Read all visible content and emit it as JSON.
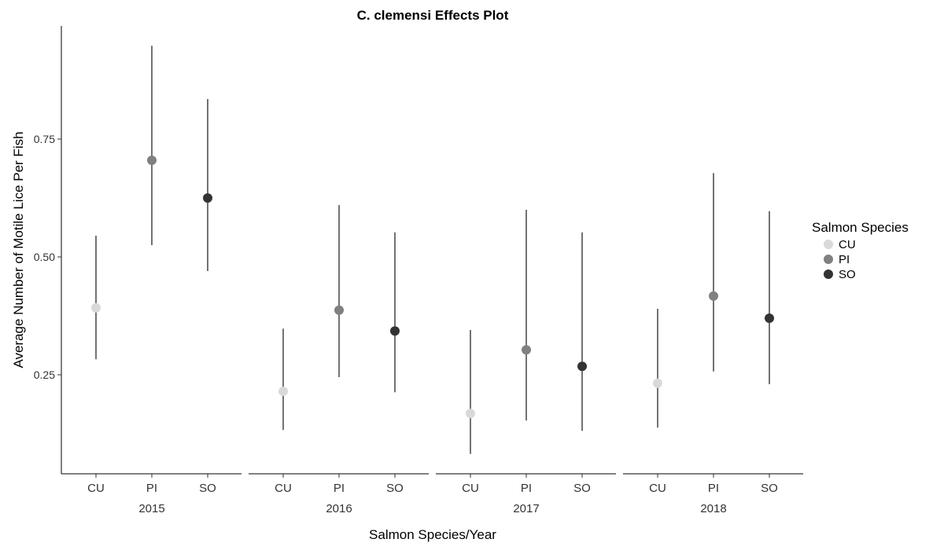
{
  "chart_data": {
    "type": "scatter",
    "title": "C. clemensi Effects Plot",
    "xlabel": "Salmon Species/Year",
    "ylabel": "Average Number of Motile Lice Per Fish",
    "ylim": [
      0.04,
      0.99
    ],
    "yticks": [
      0.25,
      0.5,
      0.75
    ],
    "ytick_labels": [
      "0.25",
      "0.50",
      "0.75"
    ],
    "grid": false,
    "legend": {
      "title": "Salmon Species",
      "position": "right",
      "entries": [
        {
          "name": "CU",
          "color": "#d9d9d9"
        },
        {
          "name": "PI",
          "color": "#808080"
        },
        {
          "name": "SO",
          "color": "#333333"
        }
      ]
    },
    "panels": [
      {
        "year": "2015",
        "points": [
          {
            "species": "CU",
            "estimate": 0.392,
            "lower": 0.283,
            "upper": 0.545
          },
          {
            "species": "PI",
            "estimate": 0.705,
            "lower": 0.525,
            "upper": 0.948
          },
          {
            "species": "SO",
            "estimate": 0.625,
            "lower": 0.47,
            "upper": 0.835
          }
        ]
      },
      {
        "year": "2016",
        "points": [
          {
            "species": "CU",
            "estimate": 0.215,
            "lower": 0.133,
            "upper": 0.348
          },
          {
            "species": "PI",
            "estimate": 0.387,
            "lower": 0.245,
            "upper": 0.61
          },
          {
            "species": "SO",
            "estimate": 0.343,
            "lower": 0.213,
            "upper": 0.552
          }
        ]
      },
      {
        "year": "2017",
        "points": [
          {
            "species": "CU",
            "estimate": 0.168,
            "lower": 0.082,
            "upper": 0.345
          },
          {
            "species": "PI",
            "estimate": 0.303,
            "lower": 0.153,
            "upper": 0.6
          },
          {
            "species": "SO",
            "estimate": 0.268,
            "lower": 0.131,
            "upper": 0.552
          }
        ]
      },
      {
        "year": "2018",
        "points": [
          {
            "species": "CU",
            "estimate": 0.232,
            "lower": 0.138,
            "upper": 0.39
          },
          {
            "species": "PI",
            "estimate": 0.417,
            "lower": 0.257,
            "upper": 0.678
          },
          {
            "species": "SO",
            "estimate": 0.37,
            "lower": 0.23,
            "upper": 0.597
          }
        ]
      }
    ]
  }
}
